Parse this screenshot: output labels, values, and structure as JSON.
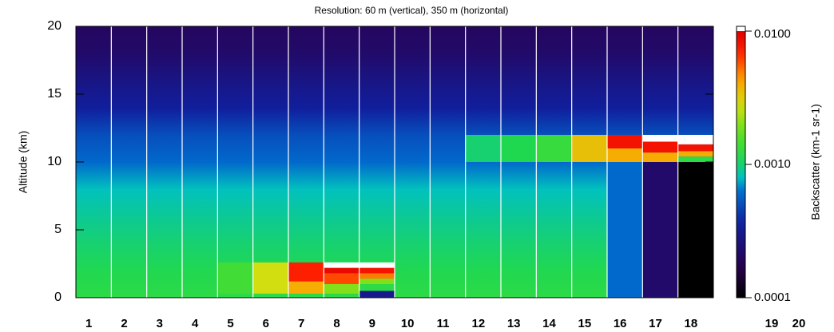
{
  "chart_data": {
    "type": "heatmap",
    "title": "Resolution: 60 m (vertical), 350 m (horizontal)",
    "ylabel": "Altitude (km)",
    "ylim": [
      0,
      20
    ],
    "yticks": [
      0,
      5,
      10,
      15,
      20
    ],
    "categories": [
      "1",
      "2",
      "3",
      "4",
      "5",
      "6",
      "7",
      "8",
      "9",
      "10",
      "11",
      "12",
      "13",
      "14",
      "15",
      "16",
      "17",
      "18",
      "19",
      "20"
    ],
    "columns": 18,
    "background": {
      "altitudes": [
        0,
        2,
        4,
        6,
        8,
        10,
        12,
        14,
        16,
        18,
        20
      ],
      "values": [
        0.0012,
        0.0011,
        0.001,
        0.0009,
        0.0008,
        0.0006,
        0.0005,
        0.00035,
        0.00028,
        0.00022,
        0.0002
      ]
    },
    "layers": [
      {
        "column": 5,
        "base": 0.3,
        "top": 2.6,
        "value": 0.0014
      },
      {
        "column": 6,
        "base": 0.3,
        "top": 2.6,
        "value": 0.0028
      },
      {
        "column": 7,
        "base": 0.3,
        "top": 1.2,
        "value": 0.004
      },
      {
        "column": 7,
        "base": 1.2,
        "top": 2.6,
        "value": 0.007
      },
      {
        "column": 8,
        "base": 0.3,
        "top": 1.0,
        "value": 0.002
      },
      {
        "column": 8,
        "base": 1.0,
        "top": 1.8,
        "value": 0.006
      },
      {
        "column": 8,
        "base": 1.8,
        "top": 2.2,
        "value": 0.009
      },
      {
        "column": 8,
        "base": 2.2,
        "top": 2.6,
        "value": 0.02
      },
      {
        "column": 9,
        "base": 0,
        "top": 0.5,
        "value": 0.0003
      },
      {
        "column": 9,
        "base": 0.5,
        "top": 1.0,
        "value": 0.0012
      },
      {
        "column": 9,
        "base": 1.0,
        "top": 1.4,
        "value": 0.002
      },
      {
        "column": 9,
        "base": 1.4,
        "top": 1.8,
        "value": 0.005
      },
      {
        "column": 9,
        "base": 1.8,
        "top": 2.2,
        "value": 0.008
      },
      {
        "column": 9,
        "base": 2.2,
        "top": 2.6,
        "value": 0.02
      },
      {
        "column": 12,
        "base": 10,
        "top": 12,
        "value": 0.001
      },
      {
        "column": 13,
        "base": 10,
        "top": 12,
        "value": 0.0011
      },
      {
        "column": 14,
        "base": 10,
        "top": 12,
        "value": 0.0013
      },
      {
        "column": 15,
        "base": 10,
        "top": 12,
        "value": 0.0035
      },
      {
        "column": 16,
        "base": 0,
        "top": 10,
        "value": 0.0006
      },
      {
        "column": 16,
        "base": 10,
        "top": 11,
        "value": 0.004
      },
      {
        "column": 16,
        "base": 11,
        "top": 12,
        "value": 0.008
      },
      {
        "column": 17,
        "base": 0,
        "top": 10,
        "value": 0.00022
      },
      {
        "column": 17,
        "base": 10,
        "top": 10.7,
        "value": 0.004
      },
      {
        "column": 17,
        "base": 10.7,
        "top": 11.5,
        "value": 0.008
      },
      {
        "column": 17,
        "base": 11.5,
        "top": 12,
        "value": 0.02
      },
      {
        "column": 18,
        "base": 0,
        "top": 10,
        "value": 0.0001
      },
      {
        "column": 18,
        "base": 10,
        "top": 10.4,
        "value": 0.0012
      },
      {
        "column": 18,
        "base": 10.4,
        "top": 10.8,
        "value": 0.004
      },
      {
        "column": 18,
        "base": 10.8,
        "top": 11.3,
        "value": 0.008
      },
      {
        "column": 18,
        "base": 11.3,
        "top": 12,
        "value": 0.02
      }
    ],
    "colorbar": {
      "label": "Backscatter (km-1 sr-1)",
      "log_scale": true,
      "lim": [
        0.0001,
        0.01
      ],
      "ticks": [
        {
          "value": 0.01,
          "label": "0.0100"
        },
        {
          "value": 0.001,
          "label": "0.0010"
        },
        {
          "value": 0.0001,
          "label": "0.0001"
        }
      ]
    }
  }
}
